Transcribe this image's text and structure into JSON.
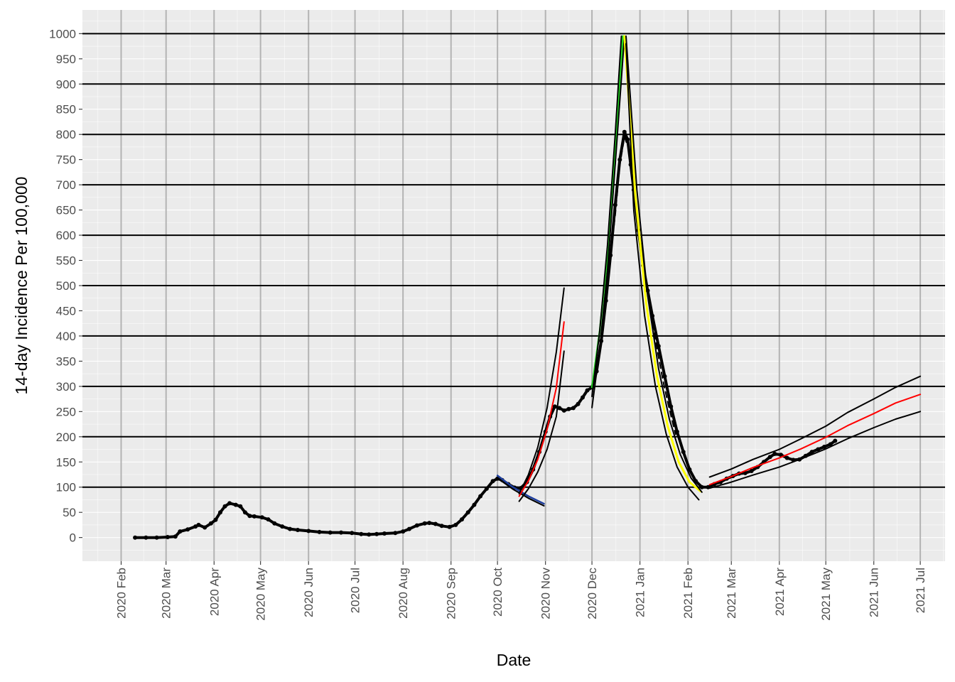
{
  "chart_data": {
    "type": "line",
    "title": "",
    "xlabel": "Date",
    "ylabel": "14-day Incidence Per 100,000",
    "xlim": [
      "2020-01-07",
      "2021-07-17"
    ],
    "ylim": [
      -47,
      1047
    ],
    "y_ticks": [
      0,
      50,
      100,
      150,
      200,
      250,
      300,
      350,
      400,
      450,
      500,
      550,
      600,
      650,
      700,
      750,
      800,
      850,
      900,
      950,
      1000
    ],
    "x_ticks": [
      {
        "date": "2020-02-01",
        "label": "2020 Feb"
      },
      {
        "date": "2020-03-01",
        "label": "2020 Mar"
      },
      {
        "date": "2020-04-01",
        "label": "2020 Apr"
      },
      {
        "date": "2020-05-01",
        "label": "2020 May"
      },
      {
        "date": "2020-06-01",
        "label": "2020 Jun"
      },
      {
        "date": "2020-07-01",
        "label": "2020 Jul"
      },
      {
        "date": "2020-08-01",
        "label": "2020 Aug"
      },
      {
        "date": "2020-09-01",
        "label": "2020 Sep"
      },
      {
        "date": "2020-10-01",
        "label": "2020 Oct"
      },
      {
        "date": "2020-11-01",
        "label": "2020 Nov"
      },
      {
        "date": "2020-12-01",
        "label": "2020 Dec"
      },
      {
        "date": "2021-01-01",
        "label": "2021 Jan"
      },
      {
        "date": "2021-02-01",
        "label": "2021 Feb"
      },
      {
        "date": "2021-03-01",
        "label": "2021 Mar"
      },
      {
        "date": "2021-04-01",
        "label": "2021 Apr"
      },
      {
        "date": "2021-05-01",
        "label": "2021 May"
      },
      {
        "date": "2021-06-01",
        "label": "2021 Jun"
      },
      {
        "date": "2021-07-01",
        "label": "2021 Jul"
      }
    ],
    "reference_lines_y": [
      100,
      200,
      300,
      400,
      500,
      600,
      700,
      800,
      900,
      1000
    ],
    "grid": true,
    "background": "#ebebeb",
    "series": [
      {
        "role": "observed",
        "color": "#000000",
        "marker": "point",
        "points": [
          [
            "2020-02-10",
            0
          ],
          [
            "2020-02-17",
            0
          ],
          [
            "2020-02-24",
            0
          ],
          [
            "2020-03-02",
            1
          ],
          [
            "2020-03-07",
            2
          ],
          [
            "2020-03-10",
            12
          ],
          [
            "2020-03-15",
            16
          ],
          [
            "2020-03-20",
            22
          ],
          [
            "2020-03-22",
            25
          ],
          [
            "2020-03-26",
            20
          ],
          [
            "2020-03-30",
            28
          ],
          [
            "2020-04-02",
            35
          ],
          [
            "2020-04-05",
            50
          ],
          [
            "2020-04-08",
            62
          ],
          [
            "2020-04-11",
            68
          ],
          [
            "2020-04-15",
            65
          ],
          [
            "2020-04-18",
            62
          ],
          [
            "2020-04-21",
            50
          ],
          [
            "2020-04-24",
            43
          ],
          [
            "2020-04-27",
            42
          ],
          [
            "2020-05-02",
            40
          ],
          [
            "2020-05-06",
            36
          ],
          [
            "2020-05-10",
            28
          ],
          [
            "2020-05-15",
            22
          ],
          [
            "2020-05-20",
            17
          ],
          [
            "2020-05-25",
            15
          ],
          [
            "2020-06-01",
            13
          ],
          [
            "2020-06-08",
            11
          ],
          [
            "2020-06-15",
            10
          ],
          [
            "2020-06-22",
            10
          ],
          [
            "2020-06-29",
            9
          ],
          [
            "2020-07-05",
            7
          ],
          [
            "2020-07-10",
            6
          ],
          [
            "2020-07-15",
            7
          ],
          [
            "2020-07-20",
            8
          ],
          [
            "2020-07-27",
            9
          ],
          [
            "2020-08-01",
            12
          ],
          [
            "2020-08-05",
            17
          ],
          [
            "2020-08-10",
            24
          ],
          [
            "2020-08-15",
            28
          ],
          [
            "2020-08-18",
            29
          ],
          [
            "2020-08-22",
            27
          ],
          [
            "2020-08-26",
            23
          ],
          [
            "2020-08-31",
            21
          ],
          [
            "2020-09-04",
            25
          ],
          [
            "2020-09-08",
            36
          ],
          [
            "2020-09-12",
            50
          ],
          [
            "2020-09-16",
            65
          ],
          [
            "2020-09-20",
            82
          ],
          [
            "2020-09-24",
            97
          ],
          [
            "2020-09-28",
            112
          ],
          [
            "2020-10-01",
            117
          ],
          [
            "2020-10-04",
            114
          ],
          [
            "2020-10-08",
            106
          ],
          [
            "2020-10-12",
            99
          ],
          [
            "2020-10-16",
            98
          ],
          [
            "2020-10-20",
            110
          ],
          [
            "2020-10-24",
            135
          ],
          [
            "2020-10-28",
            170
          ],
          [
            "2020-11-01",
            210
          ],
          [
            "2020-11-04",
            240
          ],
          [
            "2020-11-07",
            260
          ],
          [
            "2020-11-10",
            257
          ],
          [
            "2020-11-13",
            252
          ],
          [
            "2020-11-16",
            255
          ],
          [
            "2020-11-19",
            257
          ],
          [
            "2020-11-22",
            265
          ],
          [
            "2020-11-25",
            278
          ],
          [
            "2020-11-28",
            292
          ],
          [
            "2020-12-01",
            298
          ],
          [
            "2020-12-04",
            330
          ],
          [
            "2020-12-07",
            390
          ],
          [
            "2020-12-10",
            470
          ],
          [
            "2020-12-13",
            560
          ],
          [
            "2020-12-16",
            660
          ],
          [
            "2020-12-19",
            750
          ],
          [
            "2020-12-22",
            805
          ],
          [
            "2020-12-24",
            790
          ],
          [
            "2020-12-26",
            740
          ],
          [
            "2020-12-28",
            690
          ],
          [
            "2020-12-31",
            610
          ],
          [
            "2021-01-03",
            540
          ],
          [
            "2021-01-06",
            490
          ],
          [
            "2021-01-09",
            440
          ],
          [
            "2021-01-13",
            380
          ],
          [
            "2021-01-17",
            320
          ],
          [
            "2021-01-21",
            260
          ],
          [
            "2021-01-25",
            210
          ],
          [
            "2021-01-29",
            170
          ],
          [
            "2021-02-02",
            135
          ],
          [
            "2021-02-06",
            112
          ],
          [
            "2021-02-10",
            100
          ],
          [
            "2021-02-14",
            100
          ],
          [
            "2021-02-18",
            106
          ],
          [
            "2021-02-22",
            110
          ],
          [
            "2021-02-26",
            117
          ],
          [
            "2021-03-02",
            122
          ],
          [
            "2021-03-06",
            127
          ],
          [
            "2021-03-10",
            128
          ],
          [
            "2021-03-14",
            132
          ],
          [
            "2021-03-18",
            140
          ],
          [
            "2021-03-22",
            150
          ],
          [
            "2021-03-26",
            160
          ],
          [
            "2021-03-29",
            166
          ],
          [
            "2021-04-02",
            164
          ],
          [
            "2021-04-06",
            158
          ],
          [
            "2021-04-10",
            154
          ],
          [
            "2021-04-14",
            155
          ],
          [
            "2021-04-18",
            162
          ],
          [
            "2021-04-22",
            170
          ],
          [
            "2021-04-26",
            175
          ],
          [
            "2021-04-30",
            180
          ],
          [
            "2021-05-04",
            185
          ],
          [
            "2021-05-07",
            192
          ]
        ]
      },
      {
        "role": "observed-smoothed",
        "color": "#000000",
        "style": "dashed",
        "points": [
          [
            "2020-12-13",
            560
          ],
          [
            "2020-12-16",
            640
          ],
          [
            "2020-12-19",
            740
          ],
          [
            "2020-12-22",
            795
          ],
          [
            "2020-12-25",
            770
          ],
          [
            "2020-12-28",
            690
          ],
          [
            "2020-12-31",
            600
          ],
          [
            "2021-01-04",
            520
          ],
          [
            "2021-01-08",
            445
          ],
          [
            "2021-01-12",
            375
          ],
          [
            "2021-01-16",
            310
          ],
          [
            "2021-01-20",
            255
          ],
          [
            "2021-01-24",
            205
          ]
        ]
      },
      {
        "role": "fit",
        "color": "#1f3f9e",
        "width": 2.5,
        "points": [
          [
            "2020-10-01",
            123
          ],
          [
            "2020-10-11",
            100
          ],
          [
            "2020-10-21",
            82
          ],
          [
            "2020-10-31",
            67
          ]
        ]
      },
      {
        "role": "fit-bound",
        "color": "#000000",
        "points": [
          [
            "2020-10-01",
            118
          ],
          [
            "2020-10-11",
            96
          ],
          [
            "2020-10-21",
            78
          ],
          [
            "2020-10-31",
            63
          ]
        ]
      },
      {
        "role": "fit",
        "color": "#ff0000",
        "points": [
          [
            "2020-10-15",
            82
          ],
          [
            "2020-10-21",
            113
          ],
          [
            "2020-10-27",
            155
          ],
          [
            "2020-11-02",
            215
          ],
          [
            "2020-11-08",
            297
          ],
          [
            "2020-11-13",
            428
          ]
        ]
      },
      {
        "role": "fit-bound",
        "color": "#000000",
        "points": [
          [
            "2020-10-15",
            87
          ],
          [
            "2020-10-21",
            125
          ],
          [
            "2020-10-27",
            179
          ],
          [
            "2020-11-02",
            257
          ],
          [
            "2020-11-08",
            368
          ],
          [
            "2020-11-13",
            495
          ]
        ]
      },
      {
        "role": "fit-bound",
        "color": "#000000",
        "points": [
          [
            "2020-10-15",
            72
          ],
          [
            "2020-10-21",
            97
          ],
          [
            "2020-10-27",
            130
          ],
          [
            "2020-11-02",
            175
          ],
          [
            "2020-11-08",
            240
          ],
          [
            "2020-11-13",
            370
          ]
        ]
      },
      {
        "role": "fit",
        "color": "#22dd22",
        "width": 2.5,
        "points": [
          [
            "2020-12-01",
            298
          ],
          [
            "2020-12-06",
            410
          ],
          [
            "2020-12-11",
            560
          ],
          [
            "2020-12-16",
            770
          ],
          [
            "2020-12-21",
            995
          ]
        ]
      },
      {
        "role": "fit-bound",
        "color": "#000000",
        "points": [
          [
            "2020-12-01",
            280
          ],
          [
            "2020-12-06",
            410
          ],
          [
            "2020-12-11",
            580
          ],
          [
            "2020-12-16",
            800
          ],
          [
            "2020-12-20",
            995
          ]
        ]
      },
      {
        "role": "fit-bound",
        "color": "#000000",
        "points": [
          [
            "2020-12-01",
            258
          ],
          [
            "2020-12-06",
            375
          ],
          [
            "2020-12-11",
            530
          ],
          [
            "2020-12-16",
            740
          ],
          [
            "2020-12-22",
            995
          ]
        ]
      },
      {
        "role": "fit",
        "color": "#ffff00",
        "width": 3,
        "points": [
          [
            "2020-12-22",
            995
          ],
          [
            "2020-12-29",
            680
          ],
          [
            "2021-01-05",
            465
          ],
          [
            "2021-01-12",
            320
          ],
          [
            "2021-01-19",
            220
          ],
          [
            "2021-01-26",
            150
          ],
          [
            "2021-02-02",
            110
          ],
          [
            "2021-02-09",
            92
          ]
        ]
      },
      {
        "role": "fit-bound",
        "color": "#000000",
        "points": [
          [
            "2020-12-23",
            995
          ],
          [
            "2020-12-30",
            690
          ],
          [
            "2021-01-06",
            480
          ],
          [
            "2021-01-13",
            335
          ],
          [
            "2021-01-20",
            235
          ],
          [
            "2021-01-27",
            165
          ],
          [
            "2021-02-03",
            118
          ],
          [
            "2021-02-10",
            90
          ]
        ]
      },
      {
        "role": "fit-bound",
        "color": "#000000",
        "points": [
          [
            "2020-12-23",
            980
          ],
          [
            "2020-12-28",
            650
          ],
          [
            "2021-01-04",
            440
          ],
          [
            "2021-01-11",
            300
          ],
          [
            "2021-01-18",
            205
          ],
          [
            "2021-01-25",
            140
          ],
          [
            "2021-02-01",
            100
          ],
          [
            "2021-02-08",
            75
          ]
        ]
      },
      {
        "role": "fit",
        "color": "#ff0000",
        "points": [
          [
            "2021-02-15",
            105
          ],
          [
            "2021-03-01",
            121
          ],
          [
            "2021-03-15",
            139
          ],
          [
            "2021-04-01",
            158
          ],
          [
            "2021-04-15",
            176
          ],
          [
            "2021-05-01",
            199
          ],
          [
            "2021-05-15",
            222
          ],
          [
            "2021-06-01",
            246
          ],
          [
            "2021-06-15",
            267
          ],
          [
            "2021-07-01",
            284
          ]
        ]
      },
      {
        "role": "fit-bound",
        "color": "#000000",
        "points": [
          [
            "2021-02-15",
            120
          ],
          [
            "2021-03-01",
            136
          ],
          [
            "2021-03-15",
            155
          ],
          [
            "2021-04-01",
            175
          ],
          [
            "2021-04-15",
            196
          ],
          [
            "2021-05-01",
            221
          ],
          [
            "2021-05-15",
            248
          ],
          [
            "2021-06-01",
            275
          ],
          [
            "2021-06-15",
            298
          ],
          [
            "2021-07-01",
            320
          ]
        ]
      },
      {
        "role": "fit-bound",
        "color": "#000000",
        "points": [
          [
            "2021-02-15",
            98
          ],
          [
            "2021-03-01",
            110
          ],
          [
            "2021-03-15",
            124
          ],
          [
            "2021-04-01",
            140
          ],
          [
            "2021-04-15",
            156
          ],
          [
            "2021-05-01",
            176
          ],
          [
            "2021-05-15",
            196
          ],
          [
            "2021-06-01",
            218
          ],
          [
            "2021-06-15",
            235
          ],
          [
            "2021-07-01",
            250
          ]
        ]
      }
    ]
  }
}
